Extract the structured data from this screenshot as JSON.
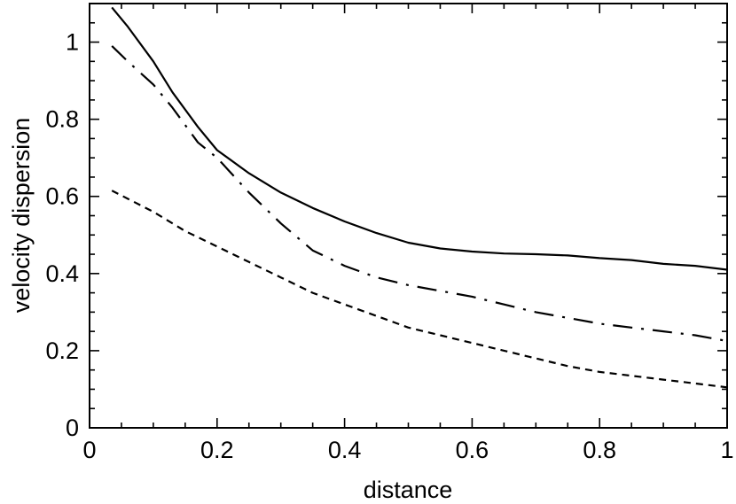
{
  "chart_data": {
    "type": "line",
    "title": "",
    "xlabel": "distance",
    "ylabel": "velocity dispersion",
    "xlim": [
      0,
      1
    ],
    "ylim": [
      0,
      1.1
    ],
    "xticks": [
      0,
      0.2,
      0.4,
      0.6,
      0.8,
      1
    ],
    "xtick_labels": [
      "0",
      "0.2",
      "0.4",
      "0.6",
      "0.8",
      "1"
    ],
    "yticks": [
      0,
      0.2,
      0.4,
      0.6,
      0.8,
      1
    ],
    "ytick_labels": [
      "0",
      "0.2",
      "0.4",
      "0.6",
      "0.8",
      "1"
    ],
    "grid": false,
    "legend": "none",
    "series": [
      {
        "style": "solid",
        "color": "#000000",
        "x": [
          0.035,
          0.06,
          0.1,
          0.13,
          0.17,
          0.2,
          0.25,
          0.3,
          0.35,
          0.4,
          0.45,
          0.5,
          0.55,
          0.6,
          0.65,
          0.7,
          0.75,
          0.8,
          0.85,
          0.9,
          0.95,
          1.0
        ],
        "y": [
          1.09,
          1.04,
          0.95,
          0.87,
          0.78,
          0.72,
          0.66,
          0.61,
          0.57,
          0.535,
          0.505,
          0.48,
          0.465,
          0.457,
          0.452,
          0.45,
          0.447,
          0.44,
          0.435,
          0.425,
          0.42,
          0.41
        ]
      },
      {
        "style": "dashdot",
        "color": "#000000",
        "x": [
          0.035,
          0.06,
          0.1,
          0.13,
          0.17,
          0.2,
          0.25,
          0.3,
          0.35,
          0.4,
          0.45,
          0.5,
          0.55,
          0.6,
          0.65,
          0.7,
          0.75,
          0.8,
          0.85,
          0.9,
          0.95,
          1.0
        ],
        "y": [
          0.99,
          0.95,
          0.89,
          0.83,
          0.74,
          0.7,
          0.61,
          0.53,
          0.46,
          0.42,
          0.39,
          0.37,
          0.355,
          0.34,
          0.32,
          0.3,
          0.285,
          0.27,
          0.26,
          0.25,
          0.24,
          0.225
        ]
      },
      {
        "style": "dashed",
        "color": "#000000",
        "x": [
          0.035,
          0.1,
          0.15,
          0.2,
          0.25,
          0.3,
          0.35,
          0.4,
          0.45,
          0.5,
          0.55,
          0.6,
          0.65,
          0.7,
          0.75,
          0.8,
          0.85,
          0.9,
          0.95,
          1.0
        ],
        "y": [
          0.615,
          0.56,
          0.51,
          0.47,
          0.43,
          0.39,
          0.35,
          0.32,
          0.29,
          0.26,
          0.24,
          0.22,
          0.2,
          0.18,
          0.16,
          0.145,
          0.135,
          0.125,
          0.115,
          0.105
        ]
      }
    ]
  }
}
